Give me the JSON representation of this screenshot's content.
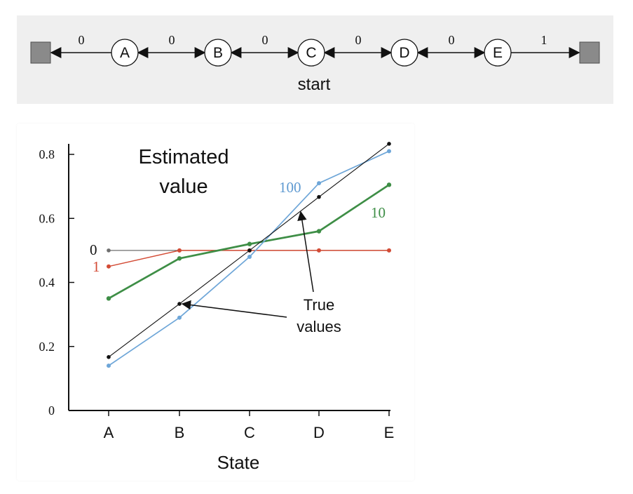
{
  "diagram": {
    "states": [
      "A",
      "B",
      "C",
      "D",
      "E"
    ],
    "rewards": [
      "0",
      "0",
      "0",
      "0",
      "0",
      "1"
    ],
    "start_label": "start",
    "colors": {
      "panel": "#efefef",
      "terminal": "#8a8a8a",
      "stroke": "#111111"
    }
  },
  "chart_data": {
    "type": "line",
    "title_line1": "Estimated",
    "title_line2": "value",
    "categories": [
      "A",
      "B",
      "C",
      "D",
      "E"
    ],
    "xlabel": "State",
    "ylabel": "",
    "ylim": [
      0,
      0.84
    ],
    "yticks": [
      "0",
      "0.2",
      "0.4",
      "0.6",
      "0.8"
    ],
    "ytick_values": [
      0,
      0.2,
      0.4,
      0.6,
      0.8
    ],
    "grid": false,
    "legend": "inline",
    "annotation": {
      "line1": "True",
      "line2": "values"
    },
    "series": [
      {
        "name": "0",
        "color": "#6f6f6f",
        "label_color": "#111111",
        "values": [
          0.5,
          0.5,
          0.5,
          0.5,
          0.5
        ]
      },
      {
        "name": "1",
        "color": "#d34b35",
        "label_color": "#d34b35",
        "values": [
          0.45,
          0.5,
          0.5,
          0.5,
          0.5
        ]
      },
      {
        "name": "10",
        "color": "#3e8e46",
        "label_color": "#3e8e46",
        "values": [
          0.35,
          0.475,
          0.52,
          0.56,
          0.705
        ]
      },
      {
        "name": "100",
        "color": "#6ea6d8",
        "label_color": "#5f9ad1",
        "values": [
          0.14,
          0.29,
          0.48,
          0.71,
          0.81
        ]
      },
      {
        "name": "",
        "color": "#111111",
        "label_color": "#111111",
        "values": [
          0.167,
          0.333,
          0.5,
          0.667,
          0.833
        ]
      }
    ]
  }
}
